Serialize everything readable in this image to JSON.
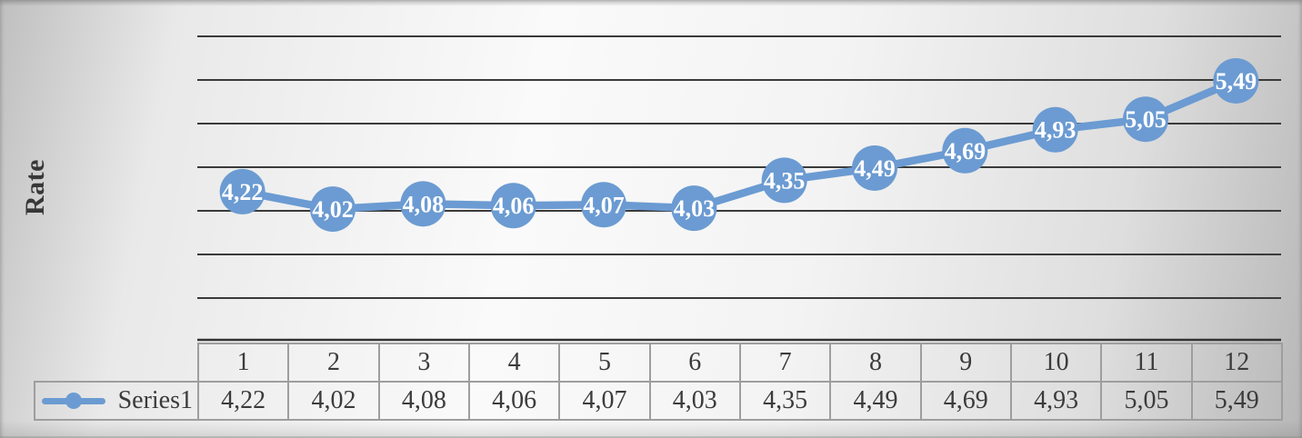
{
  "chart_data": {
    "type": "line",
    "title": "",
    "xlabel": "",
    "ylabel": "Rate",
    "categories": [
      "1",
      "2",
      "3",
      "4",
      "5",
      "6",
      "7",
      "8",
      "9",
      "10",
      "11",
      "12"
    ],
    "series": [
      {
        "name": "Series1",
        "values": [
          4.22,
          4.02,
          4.08,
          4.06,
          4.07,
          4.03,
          4.35,
          4.49,
          4.69,
          4.93,
          5.05,
          5.49
        ],
        "labels": [
          "4,22",
          "4,02",
          "4,08",
          "4,06",
          "4,07",
          "4,03",
          "4,35",
          "4,49",
          "4,69",
          "4,93",
          "5,05",
          "5,49"
        ]
      }
    ],
    "ylim": [
      2.5,
      6.0
    ],
    "gridline_step": 0.5,
    "grid": "horizontal-only",
    "y_tick_labels_visible": false,
    "data_labels": "centered-in-marker",
    "legend_position": "data-table-left",
    "decimal_separator": ",",
    "colors": {
      "series": "#6b9bd2",
      "data_label_text": "#ffffff",
      "gridline": "#3a3a3a",
      "axis_line": "#333333",
      "table_border": "#9e9e9e",
      "text": "#3b3b3b",
      "axis_title_text": "#383838"
    }
  }
}
